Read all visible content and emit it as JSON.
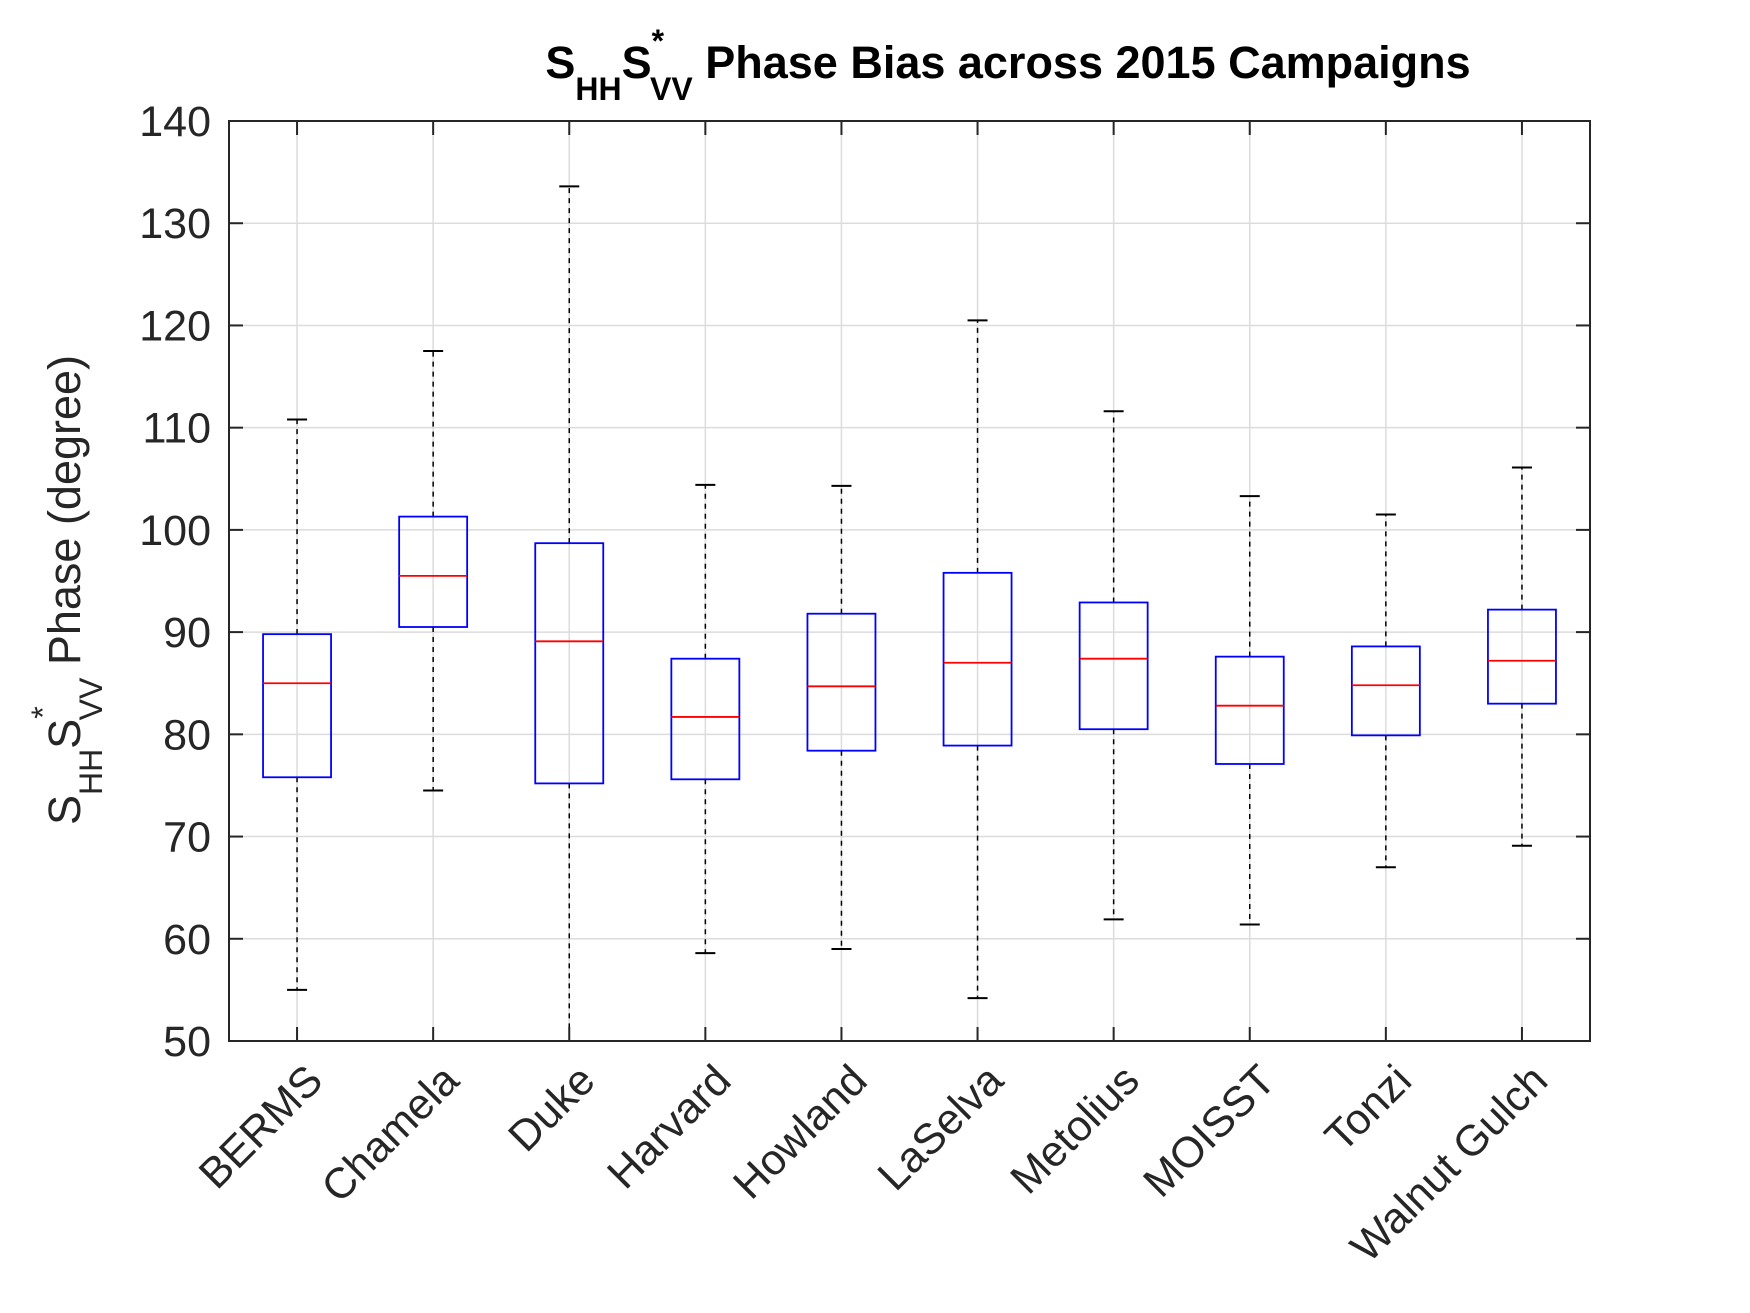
{
  "chart_data": {
    "type": "boxplot",
    "title": {
      "s1": "S",
      "sub1": "HH",
      "s2": "S",
      "sup2": "*",
      "sub2": "VV",
      "rest": " Phase Bias across 2015 Campaigns"
    },
    "ylabel": {
      "s1": "S",
      "sub1": "HH",
      "s2": "S",
      "sup2": "*",
      "sub2": "VV",
      "rest": " Phase (degree)"
    },
    "xlabel": "",
    "ylim": [
      50,
      140
    ],
    "yticks": [
      50,
      60,
      70,
      80,
      90,
      100,
      110,
      120,
      130,
      140
    ],
    "grid": true,
    "categories": [
      "BERMS",
      "Chamela",
      "Duke",
      "Harvard",
      "Howland",
      "LaSelva",
      "Metolius",
      "MOISST",
      "Tonzi",
      "Walnut Gulch"
    ],
    "boxes": [
      {
        "name": "BERMS",
        "whisker_low": 55.0,
        "q1": 75.8,
        "median": 85.0,
        "q3": 89.8,
        "whisker_high": 110.8
      },
      {
        "name": "Chamela",
        "whisker_low": 74.5,
        "q1": 90.5,
        "median": 95.5,
        "q3": 101.3,
        "whisker_high": 117.5
      },
      {
        "name": "Duke",
        "whisker_low": 50.0,
        "q1": 75.2,
        "median": 89.1,
        "q3": 98.7,
        "whisker_high": 133.6
      },
      {
        "name": "Harvard",
        "whisker_low": 58.6,
        "q1": 75.6,
        "median": 81.7,
        "q3": 87.4,
        "whisker_high": 104.4
      },
      {
        "name": "Howland",
        "whisker_low": 59.0,
        "q1": 78.4,
        "median": 84.7,
        "q3": 91.8,
        "whisker_high": 104.3
      },
      {
        "name": "LaSelva",
        "whisker_low": 54.2,
        "q1": 78.9,
        "median": 87.0,
        "q3": 95.8,
        "whisker_high": 120.5
      },
      {
        "name": "Metolius",
        "whisker_low": 61.9,
        "q1": 80.5,
        "median": 87.4,
        "q3": 92.9,
        "whisker_high": 111.6
      },
      {
        "name": "MOISST",
        "whisker_low": 61.4,
        "q1": 77.1,
        "median": 82.8,
        "q3": 87.6,
        "whisker_high": 103.3
      },
      {
        "name": "Tonzi",
        "whisker_low": 67.0,
        "q1": 79.9,
        "median": 84.8,
        "q3": 88.6,
        "whisker_high": 101.5
      },
      {
        "name": "Walnut Gulch",
        "whisker_low": 69.1,
        "q1": 83.0,
        "median": 87.2,
        "q3": 92.2,
        "whisker_high": 106.1
      }
    ],
    "colors": {
      "box": "#0000ff",
      "median": "#ff0000",
      "whisker": "#000000",
      "grid": "#dcdcdc",
      "axis": "#262626",
      "text": "#262626",
      "title": "#000000"
    }
  }
}
